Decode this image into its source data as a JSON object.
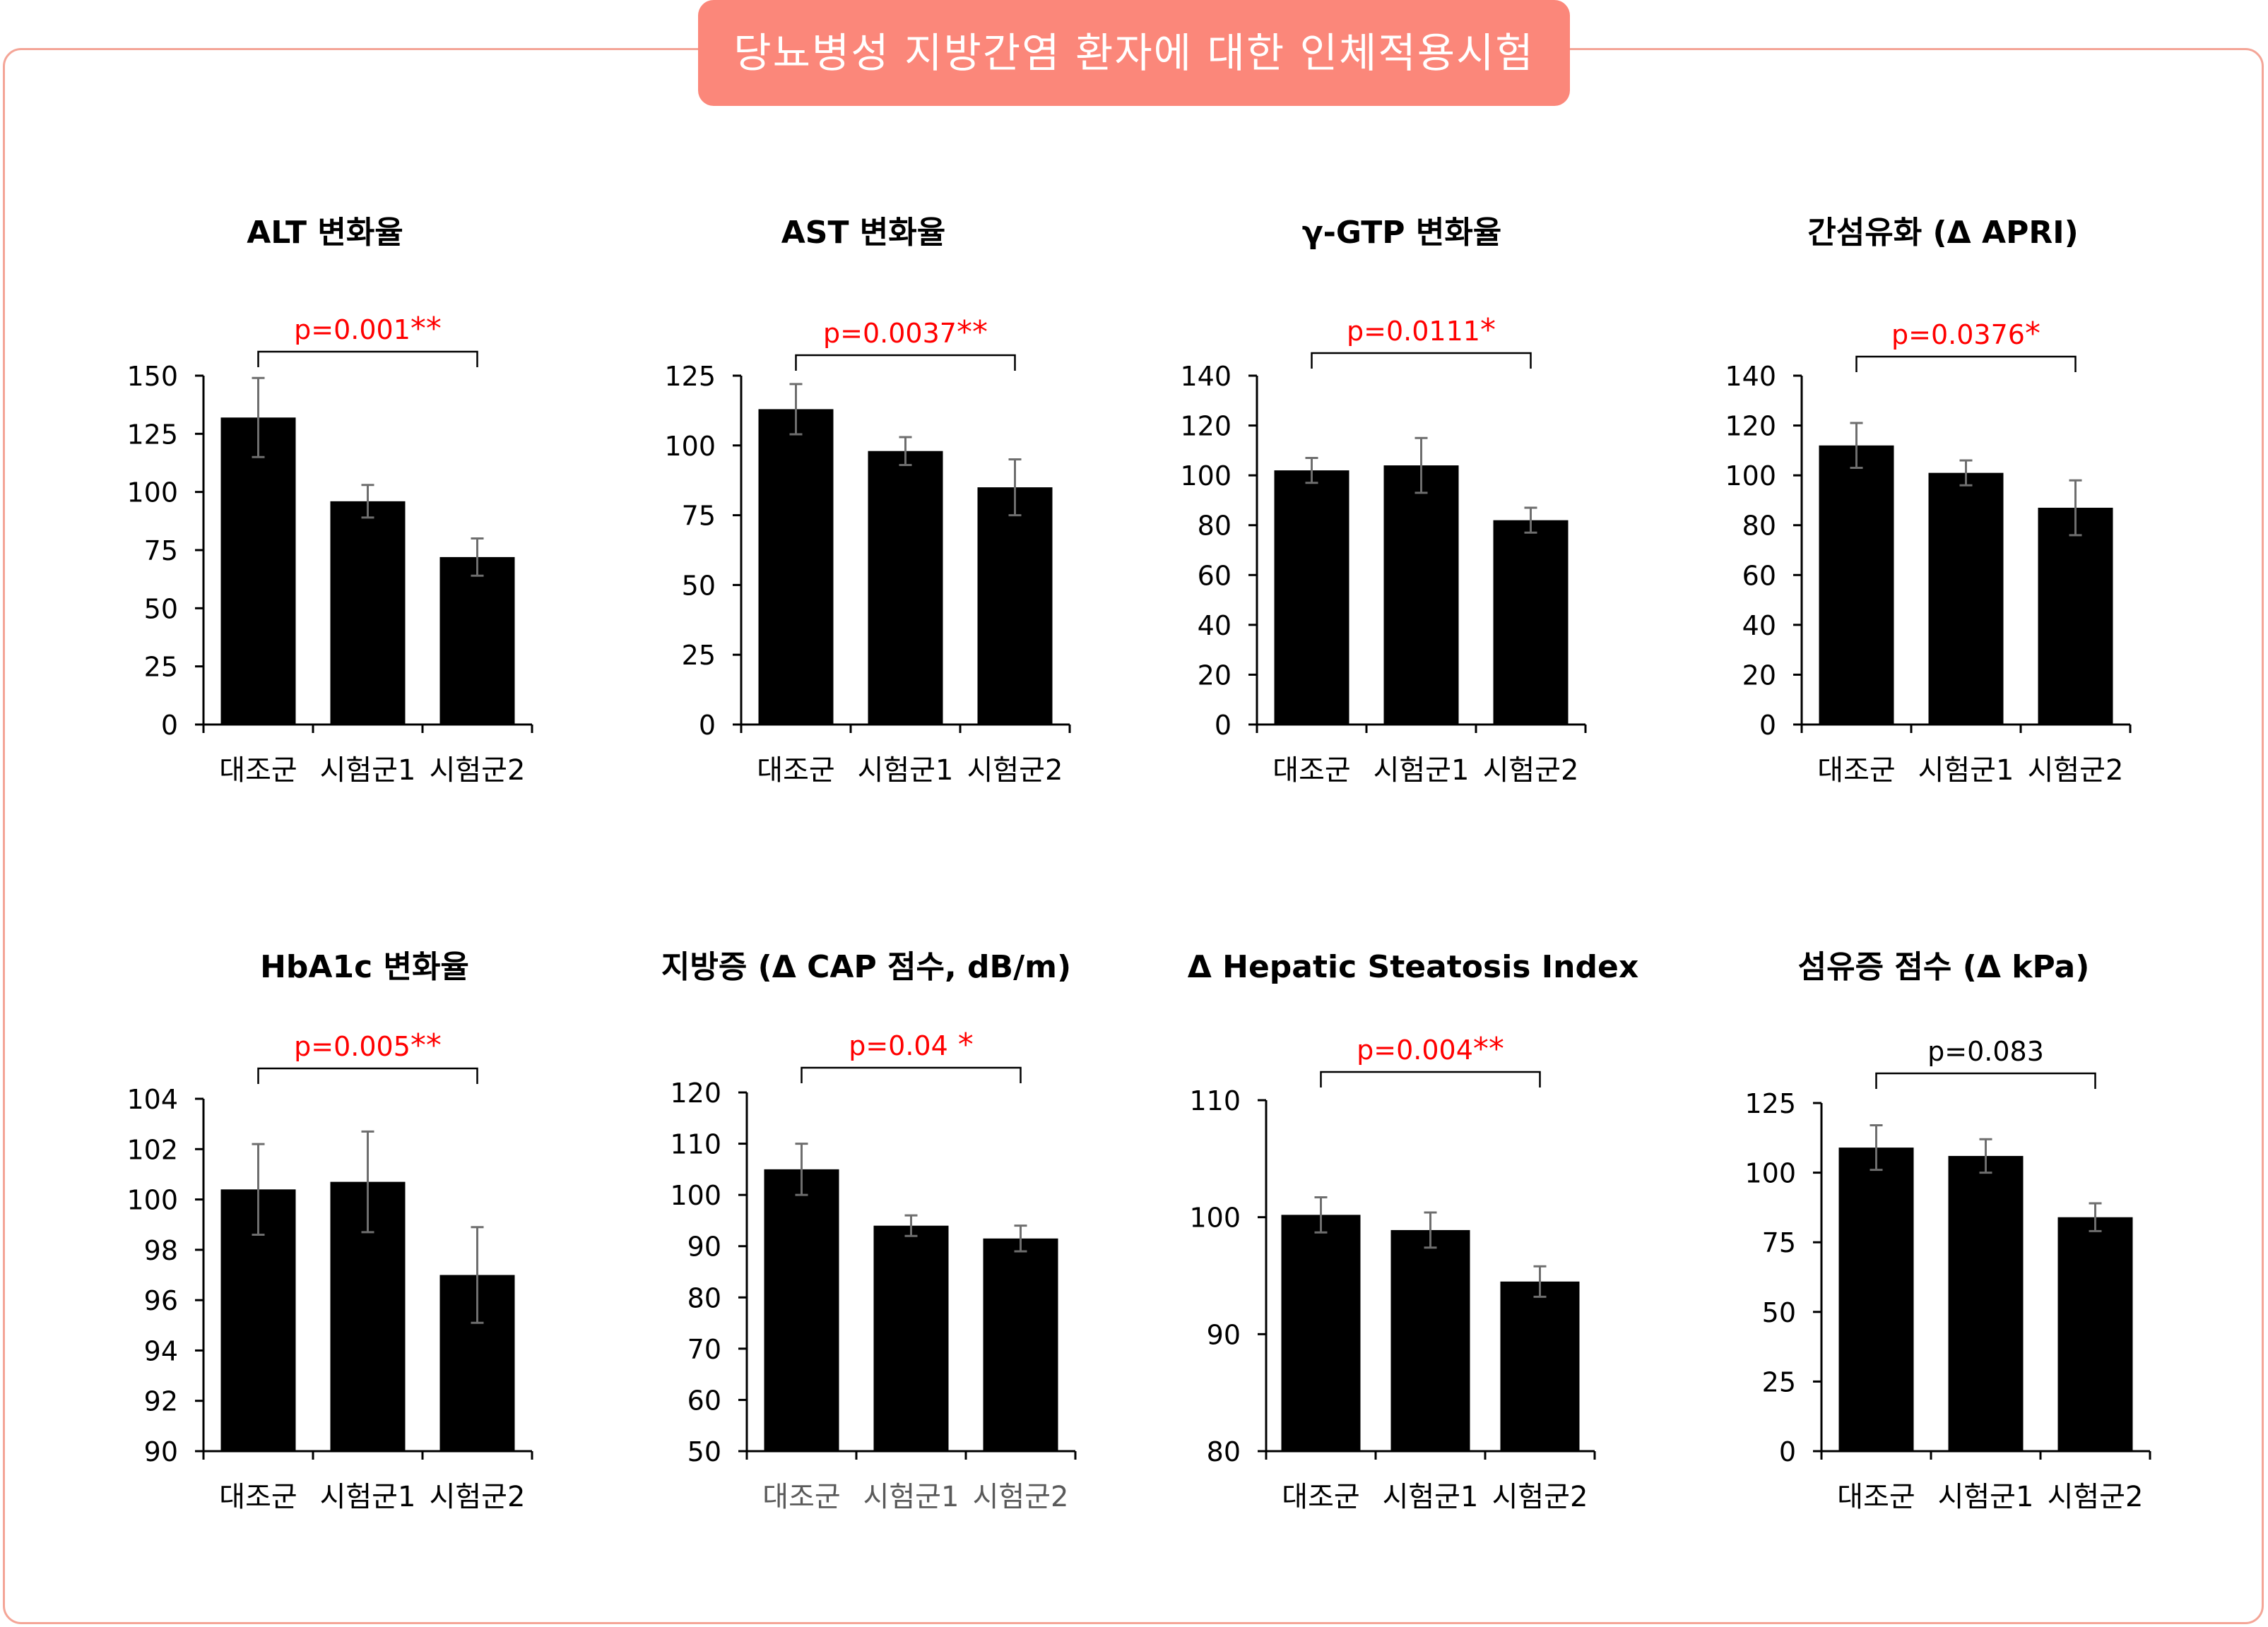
{
  "header": {
    "title": "당뇨병성 지방간염 환자에 대한 인체적용시험"
  },
  "colors": {
    "frame": "#f4a597",
    "banner": "#fb877a",
    "bar": "#000000",
    "significant_p": "#ff0000",
    "plain_p": "#000000"
  },
  "chart_data": [
    {
      "type": "bar",
      "title": "ALT 변화율",
      "categories": [
        "대조군",
        "시험군1",
        "시험군2"
      ],
      "values": [
        132,
        96,
        72
      ],
      "errors": [
        17,
        7,
        8
      ],
      "ylim": [
        0,
        150
      ],
      "yticks": [
        0,
        25,
        50,
        75,
        100,
        125,
        150
      ],
      "bracket": {
        "from": 0,
        "to": 2,
        "text": "p=0.001",
        "stars": "**",
        "significant": true
      }
    },
    {
      "type": "bar",
      "title": "AST 변화율",
      "categories": [
        "대조군",
        "시험군1",
        "시험군2"
      ],
      "values": [
        113,
        98,
        85
      ],
      "errors": [
        9,
        5,
        10
      ],
      "ylim": [
        0,
        125
      ],
      "yticks": [
        0,
        25,
        50,
        75,
        100,
        125
      ],
      "bracket": {
        "from": 0,
        "to": 2,
        "text": "p=0.0037",
        "stars": "**",
        "significant": true
      }
    },
    {
      "type": "bar",
      "title": "γ-GTP 변화율",
      "categories": [
        "대조군",
        "시험군1",
        "시험군2"
      ],
      "values": [
        102,
        104,
        82
      ],
      "errors": [
        5,
        11,
        5
      ],
      "ylim": [
        0,
        140
      ],
      "yticks": [
        0,
        20,
        40,
        60,
        80,
        100,
        120,
        140
      ],
      "bracket": {
        "from": 0,
        "to": 2,
        "text": "p=0.0111",
        "stars": "*",
        "significant": true
      }
    },
    {
      "type": "bar",
      "title": "간섬유화 (Δ APRI)",
      "categories": [
        "대조군",
        "시험군1",
        "시험군2"
      ],
      "values": [
        112,
        101,
        87
      ],
      "errors": [
        9,
        5,
        11
      ],
      "ylim": [
        0,
        140
      ],
      "yticks": [
        0,
        20,
        40,
        60,
        80,
        100,
        120,
        140
      ],
      "bracket": {
        "from": 0,
        "to": 2,
        "text": "p=0.0376",
        "stars": "*",
        "significant": true
      }
    },
    {
      "type": "bar",
      "title": "HbA1c 변화율",
      "categories": [
        "대조군",
        "시험군1",
        "시험군2"
      ],
      "values": [
        100.4,
        100.7,
        97.0
      ],
      "errors": [
        1.8,
        2.0,
        1.9
      ],
      "ylim": [
        90,
        104
      ],
      "yticks": [
        90,
        92,
        94,
        96,
        98,
        100,
        102,
        104
      ],
      "bracket": {
        "from": 0,
        "to": 2,
        "text": "p=0.005",
        "stars": "**",
        "significant": true
      }
    },
    {
      "type": "bar",
      "title": "지방증 (Δ CAP 점수, dB/m)",
      "categories": [
        "대조군",
        "시험군1",
        "시험군2"
      ],
      "values": [
        105,
        94,
        91.5
      ],
      "errors": [
        5,
        2,
        2.5
      ],
      "ylim": [
        50,
        120
      ],
      "yticks": [
        50,
        60,
        70,
        80,
        90,
        100,
        110,
        120
      ],
      "bracket": {
        "from": 0,
        "to": 2,
        "text": "p=0.04",
        "stars": " *",
        "significant": true
      }
    },
    {
      "type": "bar",
      "title": "Δ Hepatic Steatosis Index",
      "categories": [
        "대조군",
        "시험군1",
        "시험군2"
      ],
      "values": [
        100.2,
        98.9,
        94.5
      ],
      "errors": [
        1.5,
        1.5,
        1.3
      ],
      "ylim": [
        80,
        110
      ],
      "yticks": [
        80,
        90,
        100,
        110
      ],
      "bracket": {
        "from": 0,
        "to": 2,
        "text": "p=0.004",
        "stars": "**",
        "significant": true
      }
    },
    {
      "type": "bar",
      "title": "섬유증 점수 (Δ kPa)",
      "categories": [
        "대조군",
        "시험군1",
        "시험군2"
      ],
      "values": [
        109,
        106,
        84
      ],
      "errors": [
        8,
        6,
        5
      ],
      "ylim": [
        0,
        125
      ],
      "yticks": [
        0,
        25,
        50,
        75,
        100,
        125
      ],
      "bracket": {
        "from": 0,
        "to": 2,
        "text": "p=0.083",
        "stars": "",
        "significant": false
      }
    }
  ]
}
